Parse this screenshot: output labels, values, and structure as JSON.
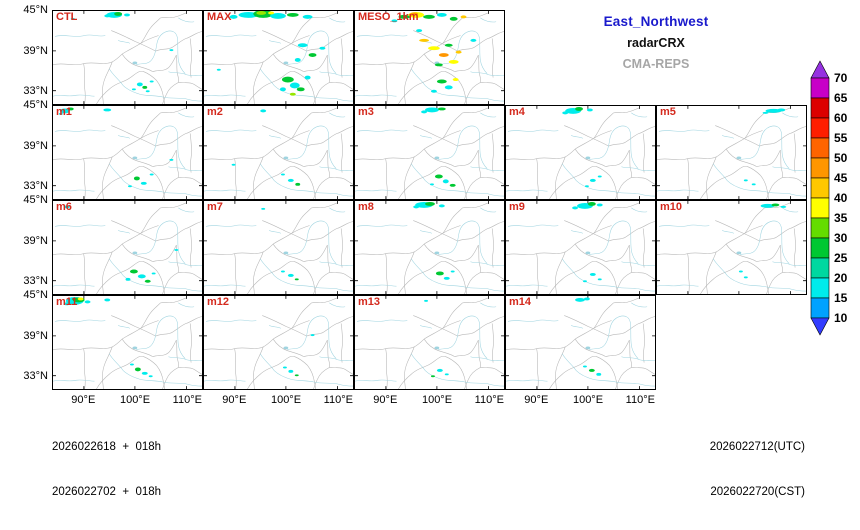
{
  "legend": {
    "region": "East_Northwest",
    "product": "radarCRX",
    "model": "CMA-REPS"
  },
  "colors": {
    "region_text": "#1a1acc",
    "product_text": "#111111",
    "model_text": "#a6a6a6",
    "panel_label": "#d42a1e"
  },
  "axes": {
    "y_ticks": [
      "45°N",
      "39°N",
      "33°N"
    ],
    "x_ticks": [
      "90°E",
      "100°E",
      "110°E"
    ]
  },
  "footer": {
    "init_utc": "2026022618  +  018h",
    "init_cst": "2026022702  +  018h",
    "valid_utc": "2026022712(UTC)",
    "valid_cst": "2026022720(CST)"
  },
  "colorbar": {
    "tick_labels_top_to_bottom": [
      "70",
      "65",
      "60",
      "55",
      "50",
      "45",
      "40",
      "35",
      "30",
      "25",
      "20",
      "15",
      "10"
    ],
    "segments_top_to_bottom": [
      "#c800c8",
      "#dc0000",
      "#ff1e00",
      "#ff6400",
      "#ff9600",
      "#ffc800",
      "#ffff00",
      "#64dc00",
      "#00c832",
      "#00d8a0",
      "#00ecec",
      "#00a2ff"
    ],
    "arrow_top": "#9632e1",
    "arrow_bottom": "#323cff"
  },
  "echo_palette": [
    "#00a2ff",
    "#00ecec",
    "#00d8a0",
    "#00c832",
    "#96e600",
    "#ffff00",
    "#ffc800",
    "#ff9600"
  ],
  "panel_rows": [
    {
      "panels": [
        {
          "label": "CTL",
          "echoes": [
            [
              62,
              4,
              8,
              3,
              1
            ],
            [
              66,
              3,
              4,
              2,
              3
            ],
            [
              55,
              5,
              3,
              1.5,
              1
            ],
            [
              75,
              4,
              3,
              1.5,
              1
            ],
            [
              20,
              8,
              2,
              1,
              1
            ],
            [
              88,
              75,
              3,
              2,
              1
            ],
            [
              93,
              78,
              2.5,
              1.5,
              3
            ],
            [
              82,
              80,
              2,
              1,
              1
            ],
            [
              100,
              72,
              2,
              1,
              1
            ],
            [
              96,
              82,
              2,
              1,
              1
            ],
            [
              120,
              40,
              2,
              1,
              1
            ]
          ]
        },
        {
          "label": "MAX",
          "echoes": [
            [
              45,
              4,
              10,
              3,
              1
            ],
            [
              60,
              3,
              10,
              4,
              3
            ],
            [
              58,
              2,
              5,
              2,
              4
            ],
            [
              75,
              5,
              8,
              3,
              1
            ],
            [
              90,
              4,
              6,
              2,
              3
            ],
            [
              105,
              6,
              5,
              2,
              1
            ],
            [
              30,
              6,
              4,
              2,
              1
            ],
            [
              68,
              2,
              3,
              1.5,
              5
            ],
            [
              100,
              35,
              5,
              2,
              1
            ],
            [
              110,
              45,
              4,
              2,
              3
            ],
            [
              120,
              38,
              3,
              1.5,
              1
            ],
            [
              95,
              50,
              3,
              2,
              1
            ],
            [
              85,
              70,
              6,
              3,
              3
            ],
            [
              92,
              76,
              5,
              3,
              1
            ],
            [
              98,
              80,
              4,
              2,
              3
            ],
            [
              80,
              80,
              3,
              2,
              1
            ],
            [
              105,
              68,
              3,
              2,
              1
            ],
            [
              90,
              85,
              3,
              1.5,
              4
            ],
            [
              15,
              60,
              2,
              1,
              1
            ]
          ]
        },
        {
          "label": "MESO_1km",
          "echoes": [
            [
              50,
              6,
              6,
              2,
              3
            ],
            [
              62,
              4,
              8,
              3,
              5
            ],
            [
              60,
              3,
              4,
              1.5,
              7
            ],
            [
              75,
              6,
              6,
              2,
              3
            ],
            [
              88,
              4,
              5,
              2,
              1
            ],
            [
              100,
              8,
              4,
              2,
              3
            ],
            [
              110,
              6,
              3,
              1.5,
              6
            ],
            [
              40,
              10,
              3,
              1.5,
              1
            ],
            [
              70,
              30,
              5,
              1.5,
              6
            ],
            [
              80,
              38,
              6,
              2,
              5
            ],
            [
              90,
              45,
              5,
              2,
              7
            ],
            [
              100,
              52,
              5,
              2,
              5
            ],
            [
              85,
              55,
              4,
              1.5,
              3
            ],
            [
              95,
              35,
              4,
              1.5,
              3
            ],
            [
              105,
              42,
              3,
              1.5,
              6
            ],
            [
              88,
              72,
              5,
              2,
              3
            ],
            [
              95,
              78,
              4,
              2,
              1
            ],
            [
              102,
              70,
              3,
              1.5,
              5
            ],
            [
              80,
              82,
              3,
              1.5,
              1
            ],
            [
              120,
              30,
              3,
              1.5,
              1
            ],
            [
              65,
              20,
              3,
              1.5,
              1
            ]
          ]
        }
      ]
    },
    {
      "panels": [
        {
          "label": "m1",
          "echoes": [
            [
              12,
              5,
              5,
              2.5,
              1
            ],
            [
              18,
              3,
              3,
              1.5,
              3
            ],
            [
              8,
              8,
              2,
              1,
              1
            ],
            [
              55,
              4,
              4,
              1.5,
              1
            ],
            [
              85,
              74,
              3,
              2,
              3
            ],
            [
              92,
              79,
              3,
              1.5,
              1
            ],
            [
              78,
              82,
              2,
              1,
              1
            ],
            [
              100,
              70,
              2,
              1,
              1
            ],
            [
              120,
              55,
              2,
              1,
              1
            ]
          ]
        },
        {
          "label": "m2",
          "echoes": [
            [
              60,
              5,
              3,
              1.5,
              1
            ],
            [
              88,
              76,
              3,
              1.5,
              1
            ],
            [
              95,
              80,
              2.5,
              1.5,
              3
            ],
            [
              80,
              70,
              2,
              1,
              1
            ],
            [
              30,
              60,
              2,
              1,
              1
            ]
          ]
        },
        {
          "label": "m3",
          "echoes": [
            [
              78,
              4,
              7,
              2.5,
              1
            ],
            [
              88,
              3,
              4,
              1.5,
              3
            ],
            [
              70,
              6,
              3,
              1.5,
              1
            ],
            [
              85,
              72,
              4,
              2,
              3
            ],
            [
              92,
              77,
              3,
              2,
              1
            ],
            [
              99,
              81,
              3,
              1.5,
              3
            ],
            [
              78,
              80,
              2,
              1,
              1
            ]
          ]
        },
        {
          "label": "m4",
          "echoes": [
            [
              68,
              5,
              8,
              3,
              1
            ],
            [
              74,
              3,
              4,
              2,
              3
            ],
            [
              60,
              7,
              3,
              1.5,
              1
            ],
            [
              85,
              4,
              3,
              1.5,
              1
            ],
            [
              88,
              76,
              3,
              1.5,
              1
            ],
            [
              95,
              72,
              2,
              1,
              1
            ],
            [
              82,
              82,
              2,
              1,
              1
            ]
          ]
        },
        {
          "label": "m5",
          "echoes": [
            [
              118,
              5,
              8,
              2,
              1
            ],
            [
              126,
              4,
              4,
              1.5,
              1
            ],
            [
              110,
              7,
              3,
              1,
              1
            ],
            [
              90,
              76,
              2,
              1,
              1
            ],
            [
              98,
              80,
              2,
              1,
              1
            ]
          ]
        }
      ]
    },
    {
      "panels": [
        {
          "label": "m6",
          "echoes": [
            [
              14,
              6,
              3,
              1.5,
              1
            ],
            [
              82,
              72,
              4,
              2,
              3
            ],
            [
              90,
              77,
              4,
              2,
              1
            ],
            [
              96,
              82,
              3,
              1.5,
              3
            ],
            [
              76,
              80,
              2.5,
              1.5,
              1
            ],
            [
              102,
              74,
              2,
              1,
              1
            ],
            [
              125,
              50,
              2,
              1,
              1
            ]
          ]
        },
        {
          "label": "m7",
          "echoes": [
            [
              88,
              76,
              3,
              1.5,
              1
            ],
            [
              94,
              80,
              2,
              1,
              3
            ],
            [
              80,
              72,
              2,
              1,
              1
            ],
            [
              60,
              8,
              2,
              1,
              1
            ]
          ]
        },
        {
          "label": "m8",
          "echoes": [
            [
              70,
              4,
              9,
              3,
              1
            ],
            [
              76,
              3,
              5,
              2,
              3
            ],
            [
              62,
              6,
              3,
              1.5,
              1
            ],
            [
              88,
              5,
              3,
              1.5,
              1
            ],
            [
              86,
              74,
              4,
              2,
              3
            ],
            [
              93,
              79,
              3,
              1.5,
              1
            ],
            [
              99,
              72,
              2,
              1,
              1
            ]
          ]
        },
        {
          "label": "m9",
          "echoes": [
            [
              80,
              5,
              8,
              3,
              1
            ],
            [
              87,
              3,
              4,
              2,
              3
            ],
            [
              70,
              7,
              3,
              1.5,
              1
            ],
            [
              95,
              4,
              3,
              1.5,
              1
            ],
            [
              88,
              75,
              3,
              1.5,
              1
            ],
            [
              95,
              80,
              2,
              1,
              1
            ],
            [
              80,
              82,
              2,
              1,
              1
            ]
          ]
        },
        {
          "label": "m10",
          "echoes": [
            [
              112,
              5,
              7,
              2,
              1
            ],
            [
              120,
              4,
              4,
              1.5,
              3
            ],
            [
              128,
              6,
              3,
              1,
              1
            ],
            [
              90,
              78,
              2,
              1,
              1
            ],
            [
              85,
              72,
              2,
              1,
              1
            ]
          ]
        }
      ]
    },
    {
      "panels": [
        {
          "label": "m11",
          "echoes": [
            [
              22,
              5,
              9,
              4,
              1
            ],
            [
              26,
              4,
              6,
              2.5,
              3
            ],
            [
              28,
              3,
              3,
              1.5,
              5
            ],
            [
              14,
              8,
              3,
              1.5,
              1
            ],
            [
              35,
              6,
              3,
              1.5,
              1
            ],
            [
              55,
              4,
              3,
              1.5,
              1
            ],
            [
              86,
              75,
              3,
              2,
              3
            ],
            [
              93,
              79,
              3,
              1.5,
              1
            ],
            [
              80,
              70,
              2,
              1,
              1
            ],
            [
              99,
              82,
              2,
              1,
              1
            ]
          ]
        },
        {
          "label": "m12",
          "echoes": [
            [
              88,
              77,
              2.5,
              1.5,
              1
            ],
            [
              94,
              81,
              2,
              1,
              3
            ],
            [
              82,
              73,
              2,
              1,
              1
            ],
            [
              110,
              40,
              2,
              1,
              1
            ]
          ]
        },
        {
          "label": "m13",
          "echoes": [
            [
              86,
              76,
              3,
              1.5,
              1
            ],
            [
              93,
              80,
              2,
              1,
              1
            ],
            [
              79,
              82,
              2,
              1,
              3
            ],
            [
              72,
              5,
              2,
              1,
              1
            ]
          ]
        },
        {
          "label": "m14",
          "echoes": [
            [
              75,
              4,
              5,
              2,
              1
            ],
            [
              82,
              3,
              3,
              1.5,
              1
            ],
            [
              87,
              76,
              3,
              1.5,
              3
            ],
            [
              94,
              80,
              2.5,
              1.5,
              1
            ],
            [
              80,
              72,
              2,
              1,
              1
            ]
          ]
        }
      ]
    }
  ]
}
